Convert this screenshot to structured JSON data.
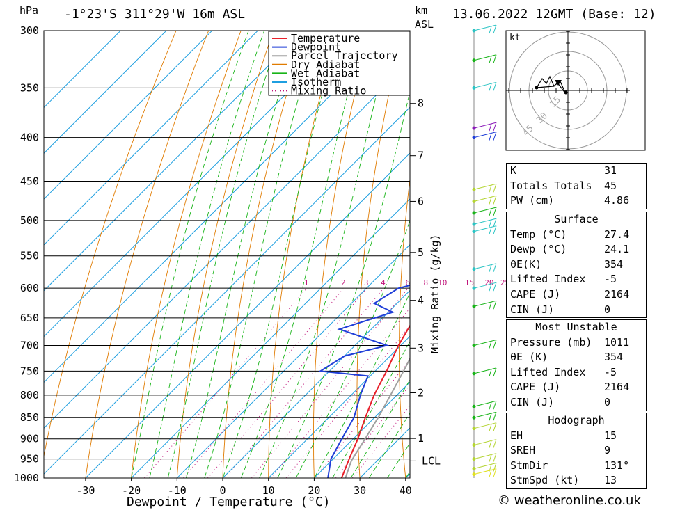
{
  "header": {
    "location": "-1°23'S 311°29'W 16m ASL",
    "datetime": "13.06.2022 12GMT (Base: 12)",
    "unit_left": "hPa",
    "unit_right_1": "km",
    "unit_right_2": "ASL"
  },
  "legend": [
    {
      "label": "Temperature",
      "color": "#e8202a",
      "style": "solid"
    },
    {
      "label": "Dewpoint",
      "color": "#1f3ed8",
      "style": "solid"
    },
    {
      "label": "Parcel Trajectory",
      "color": "#a0a0a0",
      "style": "solid"
    },
    {
      "label": "Dry Adiabat",
      "color": "#e07b00",
      "style": "solid"
    },
    {
      "label": "Wet Adiabat",
      "color": "#18b418",
      "style": "solid"
    },
    {
      "label": "Isotherm",
      "color": "#1e9fe0",
      "style": "solid"
    },
    {
      "label": "Mixing Ratio",
      "color": "#c0147a",
      "style": "dotted"
    }
  ],
  "chart_data": {
    "type": "line",
    "subtype": "skew-t log-p",
    "xlabel": "Dewpoint / Temperature (°C)",
    "ylabel_right": "Mixing Ratio (g/kg)",
    "x_ticks": [
      -30,
      -20,
      -10,
      0,
      10,
      20,
      30,
      40
    ],
    "p_levels": [
      300,
      350,
      400,
      450,
      500,
      550,
      600,
      650,
      700,
      750,
      800,
      850,
      900,
      950,
      1000
    ],
    "height_ticks": [
      {
        "km": "1",
        "p": 899
      },
      {
        "km": "2",
        "p": 795
      },
      {
        "km": "3",
        "p": 705
      },
      {
        "km": "4",
        "p": 620
      },
      {
        "km": "5",
        "p": 545
      },
      {
        "km": "6",
        "p": 475
      },
      {
        "km": "7",
        "p": 420
      },
      {
        "km": "8",
        "p": 365
      }
    ],
    "lcl": {
      "label": "LCL",
      "p": 955
    },
    "mixing_ratio_labels": [
      "1",
      "2",
      "3",
      "4",
      "6",
      "8",
      "10",
      "15",
      "20",
      "25"
    ],
    "series": [
      {
        "name": "Temperature",
        "color": "#e8202a",
        "points": [
          [
            1011,
            27.4
          ],
          [
            1000,
            26
          ],
          [
            950,
            23.5
          ],
          [
            900,
            21
          ],
          [
            850,
            18
          ],
          [
            800,
            15
          ],
          [
            750,
            12.5
          ],
          [
            700,
            9.5
          ],
          [
            650,
            7
          ],
          [
            600,
            3
          ],
          [
            550,
            -1
          ],
          [
            500,
            -5.5
          ],
          [
            450,
            -11
          ],
          [
            400,
            -18
          ],
          [
            370,
            -24
          ],
          [
            360,
            -26
          ]
        ]
      },
      {
        "name": "Dewpoint",
        "color": "#1f3ed8",
        "points": [
          [
            1011,
            24.1
          ],
          [
            1000,
            23
          ],
          [
            950,
            19.5
          ],
          [
            900,
            17.5
          ],
          [
            850,
            15.5
          ],
          [
            800,
            12
          ],
          [
            760,
            9.5
          ],
          [
            750,
            -2
          ],
          [
            720,
            0
          ],
          [
            700,
            7
          ],
          [
            670,
            -7
          ],
          [
            640,
            1
          ],
          [
            625,
            -5
          ],
          [
            600,
            -3
          ],
          [
            575,
            7
          ],
          [
            550,
            -5
          ],
          [
            525,
            8
          ],
          [
            500,
            5
          ],
          [
            450,
            -8
          ],
          [
            425,
            -18
          ],
          [
            380,
            -6
          ],
          [
            360,
            -37
          ],
          [
            340,
            -25
          ],
          [
            320,
            -42
          ],
          [
            300,
            -40
          ]
        ]
      },
      {
        "name": "Parcel Trajectory",
        "color": "#a0a0a0",
        "points": [
          [
            1011,
            27.4
          ],
          [
            955,
            24.4
          ],
          [
            900,
            22.6
          ],
          [
            850,
            20.8
          ],
          [
            800,
            18.6
          ],
          [
            750,
            16.2
          ],
          [
            700,
            13.5
          ],
          [
            650,
            10.5
          ],
          [
            600,
            7
          ],
          [
            550,
            3
          ],
          [
            500,
            -1.5
          ],
          [
            450,
            -7
          ],
          [
            400,
            -14
          ],
          [
            370,
            -19
          ],
          [
            360,
            -21
          ]
        ]
      }
    ]
  },
  "hodograph": {
    "unit": "kt",
    "ring_labels": [
      "15",
      "30",
      "45"
    ]
  },
  "indices": {
    "k_label": "K",
    "k": "31",
    "tt_label": "Totals Totals",
    "tt": "45",
    "pw_label": "PW (cm)",
    "pw": "4.86"
  },
  "surface": {
    "title": "Surface",
    "temp_label": "Temp (°C)",
    "temp": "27.4",
    "dewp_label": "Dewp (°C)",
    "dewp": "24.1",
    "thetae_label": "θE(K)",
    "thetae": "354",
    "li_label": "Lifted Index",
    "li": "-5",
    "cape_label": "CAPE (J)",
    "cape": "2164",
    "cin_label": "CIN (J)",
    "cin": "0"
  },
  "most_unstable": {
    "title": "Most Unstable",
    "pressure_label": "Pressure (mb)",
    "pressure": "1011",
    "thetae_label": "θE (K)",
    "thetae": "354",
    "li_label": "Lifted Index",
    "li": "-5",
    "cape_label": "CAPE (J)",
    "cape": "2164",
    "cin_label": "CIN (J)",
    "cin": "0"
  },
  "hodograph_table": {
    "title": "Hodograph",
    "eh_label": "EH",
    "eh": "15",
    "sreh_label": "SREH",
    "sreh": "9",
    "stmdir_label": "StmDir",
    "stmdir": "131°",
    "stmspd_label": "StmSpd (kt)",
    "stmspd": "13"
  },
  "footer": "© weatheronline.co.uk"
}
